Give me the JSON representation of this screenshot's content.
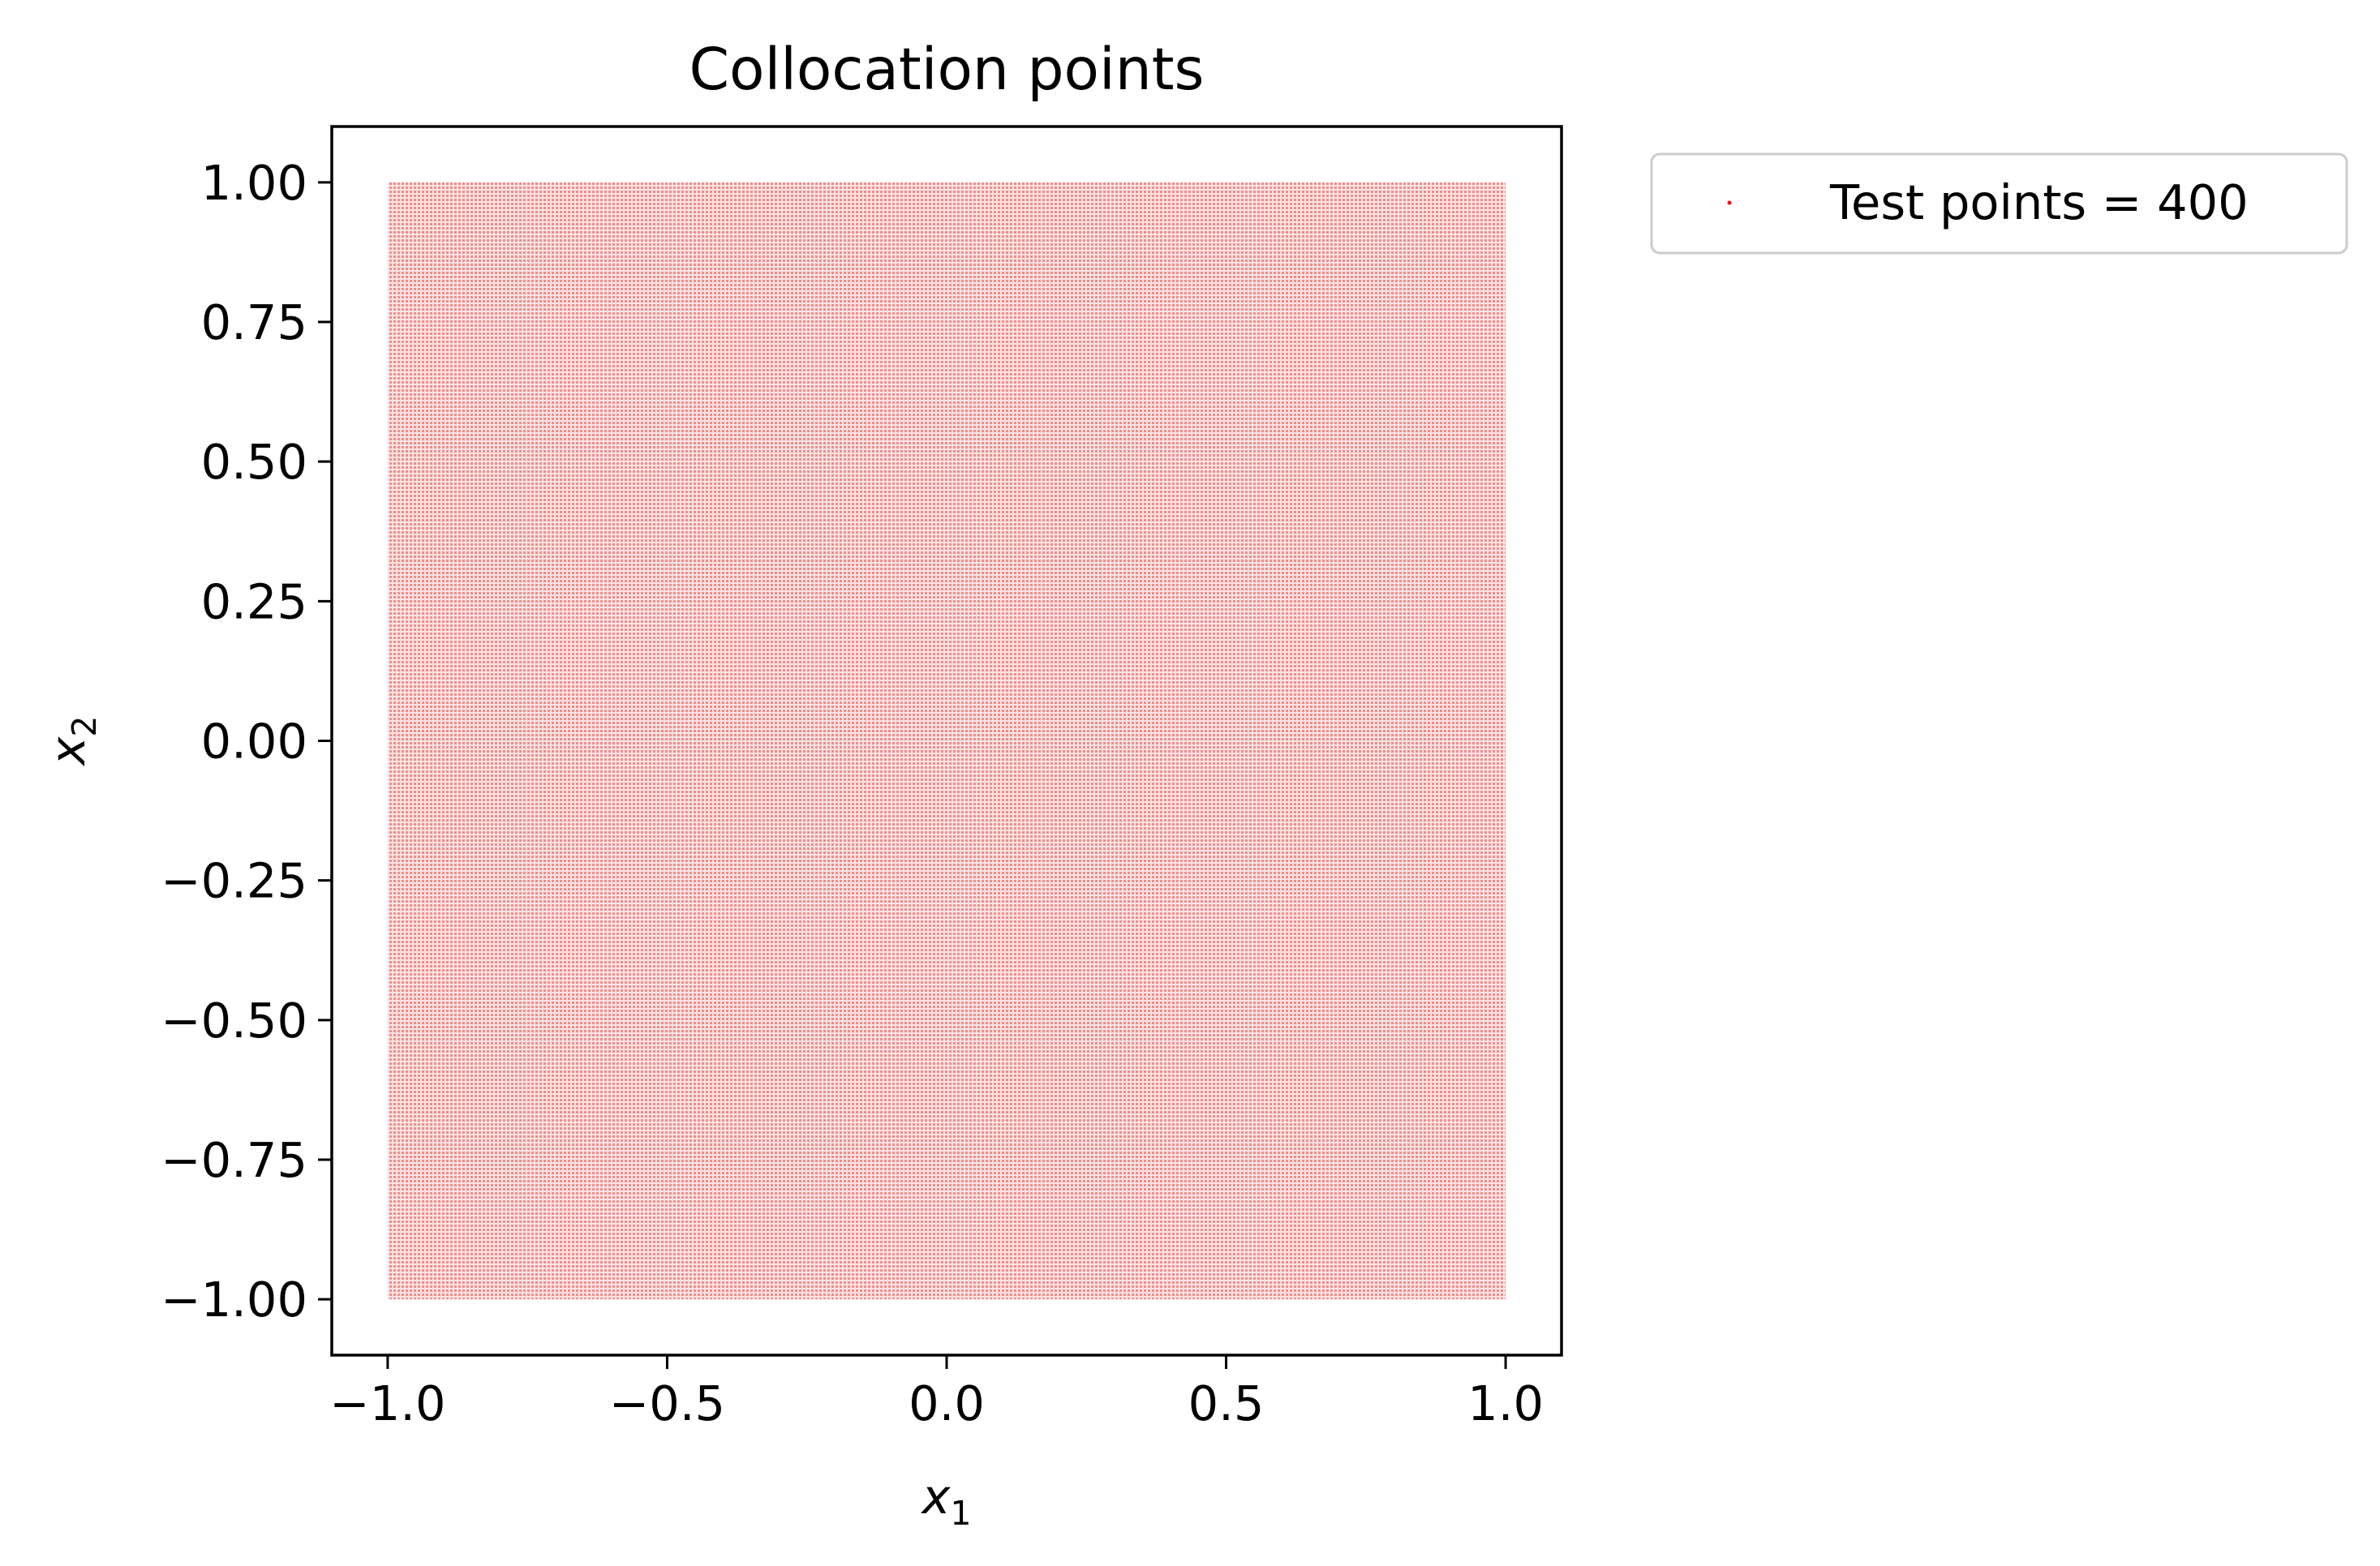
{
  "chart_data": {
    "type": "scatter",
    "title": "Collocation points",
    "xlabel": "x",
    "xlabel_subscript": "1",
    "ylabel": "x",
    "ylabel_subscript": "2",
    "xlim": [
      -1.1,
      1.1
    ],
    "ylim": [
      -1.1,
      1.1
    ],
    "xticks": [
      -1.0,
      -0.5,
      0.0,
      0.5,
      1.0
    ],
    "xtick_labels": [
      "−1.0",
      "−0.5",
      "0.0",
      "0.5",
      "1.0"
    ],
    "yticks": [
      1.0,
      0.75,
      0.5,
      0.25,
      0.0,
      -0.25,
      -0.5,
      -0.75,
      -1.0
    ],
    "ytick_labels": [
      "1.00",
      "0.75",
      "0.50",
      "0.25",
      "0.00",
      "−0.25",
      "−0.50",
      "−0.75",
      "−1.00"
    ],
    "grid": false,
    "legend_position": "outside-top-right",
    "series": [
      {
        "name": "Test points = 400",
        "color": "#ff0000",
        "x_range": [
          -1.0,
          1.0
        ],
        "y_range": [
          -1.0,
          1.0
        ],
        "distribution": "uniform-dense"
      }
    ]
  }
}
